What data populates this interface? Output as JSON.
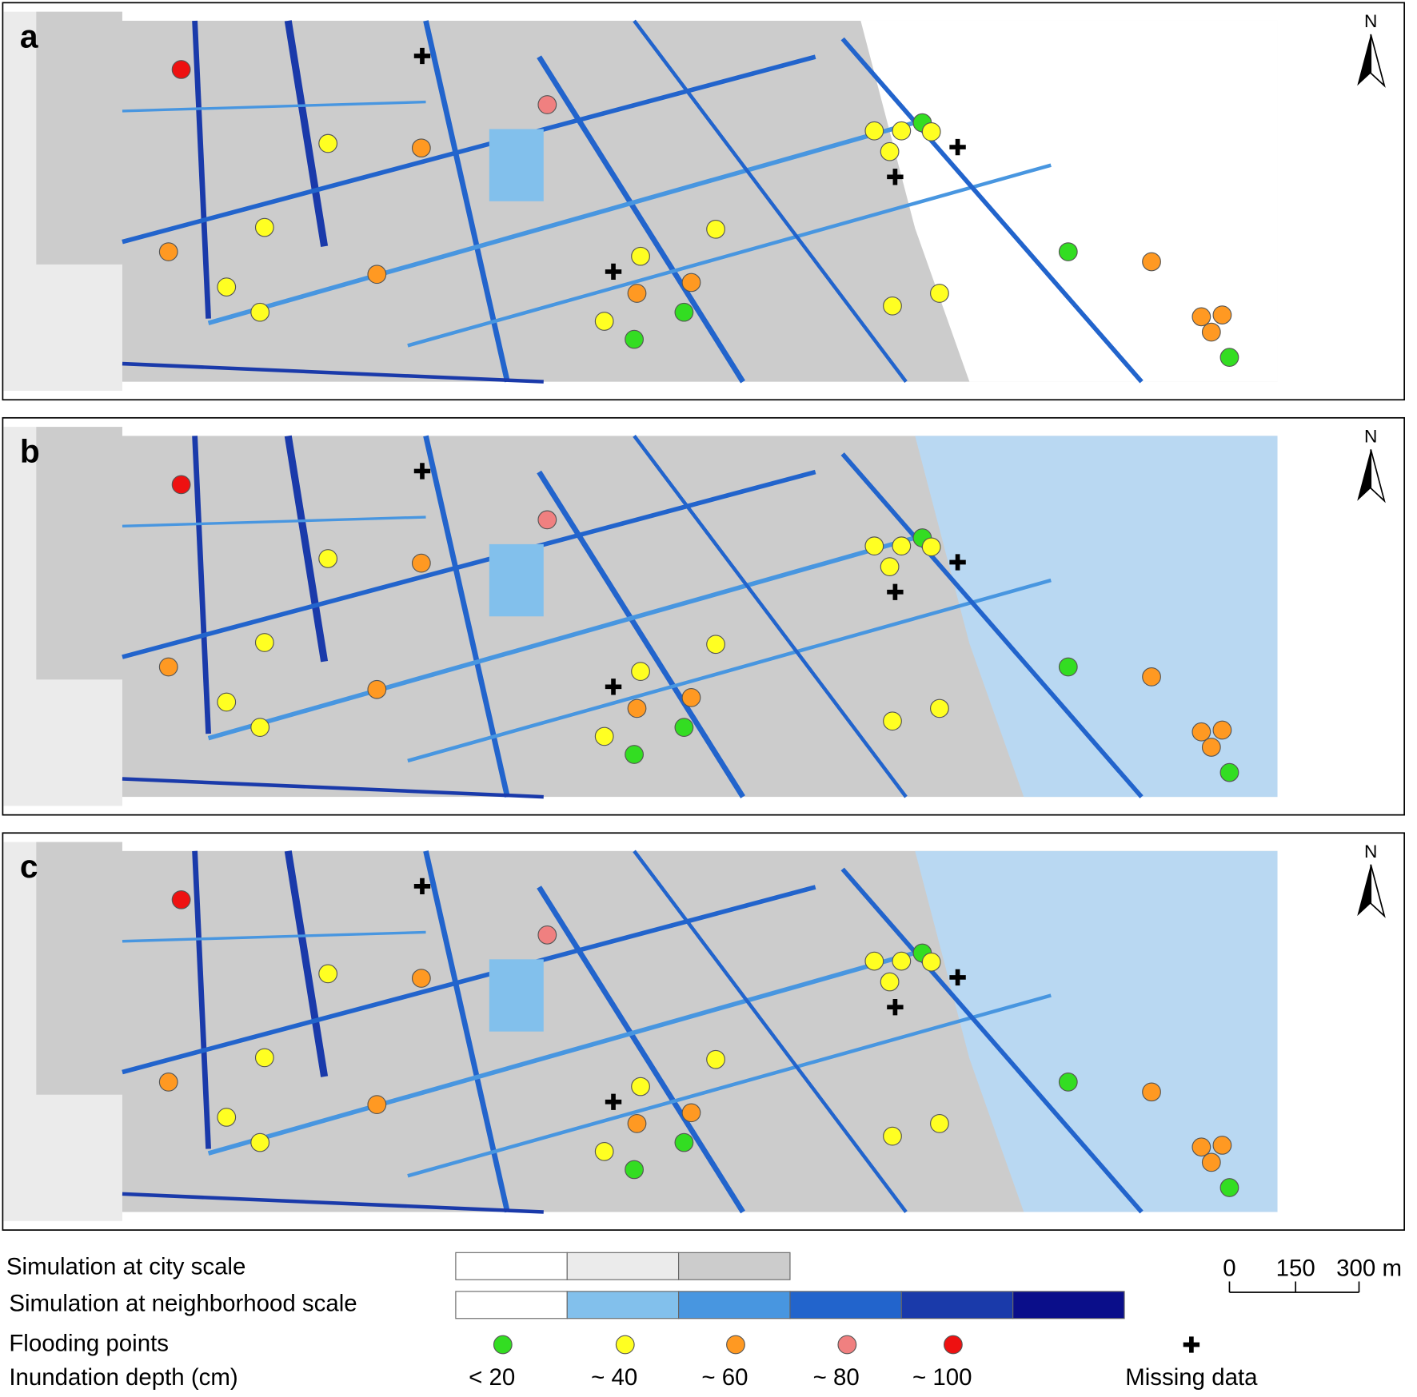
{
  "panels": [
    {
      "label": "a"
    },
    {
      "label": "b"
    },
    {
      "label": "c"
    }
  ],
  "north": "N",
  "legend": {
    "city_scale": "Simulation at city scale",
    "neighborhood_scale": "Simulation at neighborhood scale",
    "flooding_points": "Flooding points",
    "inundation_depth": "Inundation depth (cm)",
    "depth_classes": [
      "< 20",
      "~ 40",
      "~ 60",
      "~ 80",
      "~ 100"
    ],
    "missing": "Missing data"
  },
  "scale_bar": {
    "ticks": [
      "0",
      "150",
      "300 m"
    ]
  }
}
